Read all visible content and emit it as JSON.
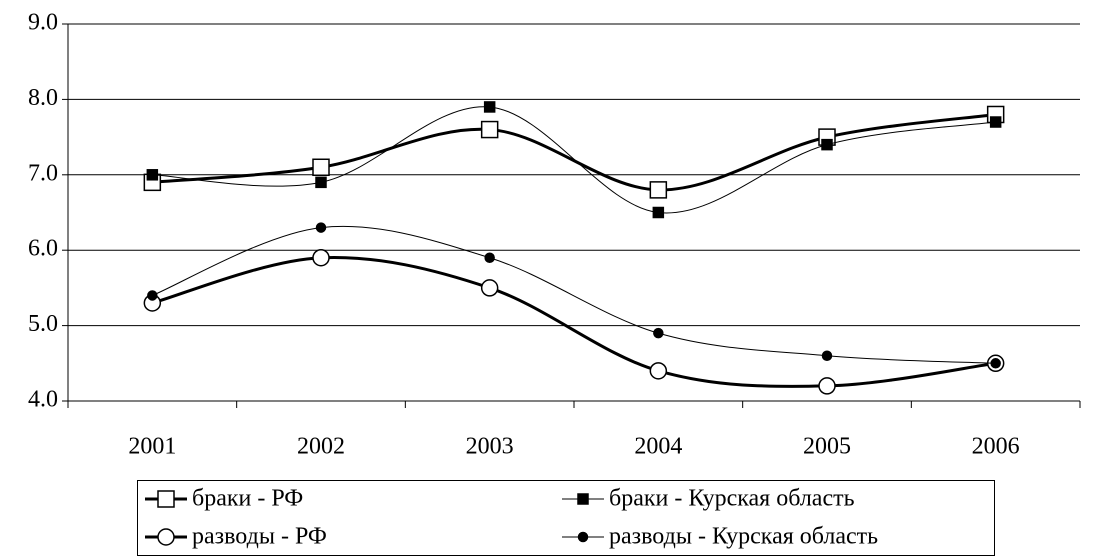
{
  "chart_data": {
    "type": "line",
    "smooth": true,
    "categories": [
      "2001",
      "2002",
      "2003",
      "2004",
      "2005",
      "2006"
    ],
    "ylim": [
      4,
      9
    ],
    "yticks": [
      {
        "value": 4,
        "label": "4.0"
      },
      {
        "value": 5,
        "label": "5.0"
      },
      {
        "value": 6,
        "label": "6.0"
      },
      {
        "value": 7,
        "label": "7.0"
      },
      {
        "value": 8,
        "label": "8.0"
      },
      {
        "value": 9,
        "label": "9.0"
      }
    ],
    "grid": true,
    "legend": "bottom",
    "series": [
      {
        "name": "браки - РФ",
        "color": "#000000",
        "marker": "square-open",
        "line_width": 3,
        "values": [
          6.9,
          7.1,
          7.6,
          6.8,
          7.5,
          7.8
        ]
      },
      {
        "name": "браки - Курская область",
        "color": "#000000",
        "marker": "square-filled",
        "line_width": 1,
        "values": [
          7.0,
          6.9,
          7.9,
          6.5,
          7.4,
          7.7
        ]
      },
      {
        "name": "разводы - РФ",
        "color": "#000000",
        "marker": "circle-open",
        "line_width": 3,
        "values": [
          5.3,
          5.9,
          5.5,
          4.4,
          4.2,
          4.5
        ]
      },
      {
        "name": "разводы - Курская область",
        "color": "#000000",
        "marker": "circle-filled",
        "line_width": 1,
        "values": [
          5.4,
          6.3,
          5.9,
          4.9,
          4.6,
          4.5
        ]
      }
    ]
  }
}
